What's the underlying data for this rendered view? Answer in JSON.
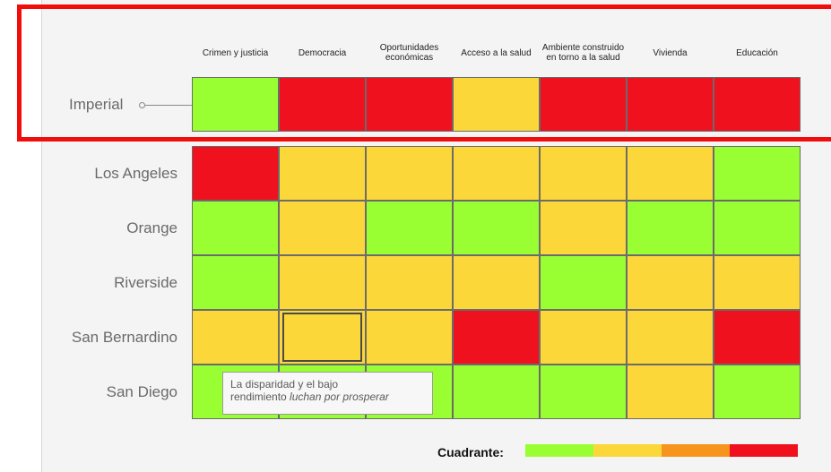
{
  "columns": [
    "Crimen y justicia",
    "Democracia",
    "Oportunidades económicas",
    "Acceso a la salud",
    "Ambiente construido en torno a la salud",
    "Vivienda",
    "Educación"
  ],
  "column_lines": [
    [
      "Crimen y justicia"
    ],
    [
      "Democracia"
    ],
    [
      "Oportunidades",
      "económicas"
    ],
    [
      "Acceso a la salud"
    ],
    [
      "Ambiente construido",
      "en torno a la salud"
    ],
    [
      "Vivienda"
    ],
    [
      "Educación"
    ]
  ],
  "rows": [
    {
      "label": "Imperial",
      "cells": [
        "green",
        "red",
        "red",
        "yellow",
        "red",
        "red",
        "red"
      ]
    },
    {
      "label": "Los Angeles",
      "cells": [
        "red",
        "yellow",
        "yellow",
        "yellow",
        "yellow",
        "yellow",
        "green"
      ]
    },
    {
      "label": "Orange",
      "cells": [
        "green",
        "yellow",
        "green",
        "green",
        "yellow",
        "green",
        "green"
      ]
    },
    {
      "label": "Riverside",
      "cells": [
        "green",
        "yellow",
        "yellow",
        "yellow",
        "green",
        "yellow",
        "yellow"
      ]
    },
    {
      "label": "San Bernardino",
      "cells": [
        "yellow",
        "yellow",
        "yellow",
        "red",
        "yellow",
        "yellow",
        "red"
      ]
    },
    {
      "label": "San Diego",
      "cells": [
        "green",
        "green",
        "green",
        "green",
        "green",
        "yellow",
        "green"
      ]
    }
  ],
  "selected_cell": {
    "row": 4,
    "col": 1
  },
  "colors": {
    "green": "#99ff33",
    "yellow": "#fcd73a",
    "orange": "#f7941d",
    "red": "#f0111f",
    "highlight": "#f20d0d"
  },
  "tooltip": {
    "line1": "La disparidad y el bajo",
    "line2_prefix": "rendimiento ",
    "line2_emphasis": "luchan por prosperar"
  },
  "legend": {
    "label": "Cuadrante:",
    "swatches": [
      "green",
      "yellow",
      "orange",
      "red"
    ]
  }
}
